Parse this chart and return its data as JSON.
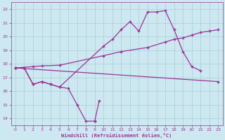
{
  "bg_color": "#cde8f0",
  "line_color": "#993399",
  "ylim": [
    13.5,
    22.5
  ],
  "xlim": [
    -0.5,
    23.5
  ],
  "yticks": [
    14,
    15,
    16,
    17,
    18,
    19,
    20,
    21,
    22
  ],
  "xticks": [
    0,
    1,
    2,
    3,
    4,
    5,
    6,
    7,
    8,
    9,
    10,
    11,
    12,
    13,
    14,
    15,
    16,
    17,
    18,
    19,
    20,
    21,
    22,
    23
  ],
  "xlabel": "Windchill (Refroidissement éolien,°C)",
  "line1": {
    "x": [
      0,
      1,
      2,
      3,
      4,
      5,
      6,
      7,
      8,
      9
    ],
    "y": [
      17.7,
      17.7,
      16.5,
      16.7,
      16.5,
      16.3,
      16.2,
      15.0,
      13.8,
      13.8
    ]
  },
  "line1b": {
    "x": [
      9,
      9.5
    ],
    "y": [
      13.8,
      15.3
    ]
  },
  "line2": {
    "x": [
      0,
      1,
      2,
      3,
      4,
      5,
      10,
      11,
      12,
      13,
      14,
      15,
      16,
      17,
      18,
      19,
      20,
      21,
      22,
      23
    ],
    "y": [
      17.7,
      17.7,
      16.5,
      16.7,
      16.5,
      16.3,
      19.3,
      19.8,
      20.5,
      21.1,
      20.4,
      21.8,
      21.8,
      21.9,
      20.5,
      18.9,
      17.8,
      17.5,
      null,
      16.7
    ]
  },
  "line3": {
    "x": [
      0,
      23
    ],
    "y": [
      17.7,
      16.7
    ]
  },
  "line4": {
    "x": [
      0,
      2,
      3,
      5,
      10,
      12,
      15,
      17,
      18,
      19,
      20,
      21,
      22,
      23
    ],
    "y": [
      17.7,
      17.8,
      17.85,
      17.9,
      18.6,
      18.9,
      19.2,
      19.6,
      19.8,
      19.9,
      20.1,
      20.3,
      20.4,
      20.5
    ]
  }
}
